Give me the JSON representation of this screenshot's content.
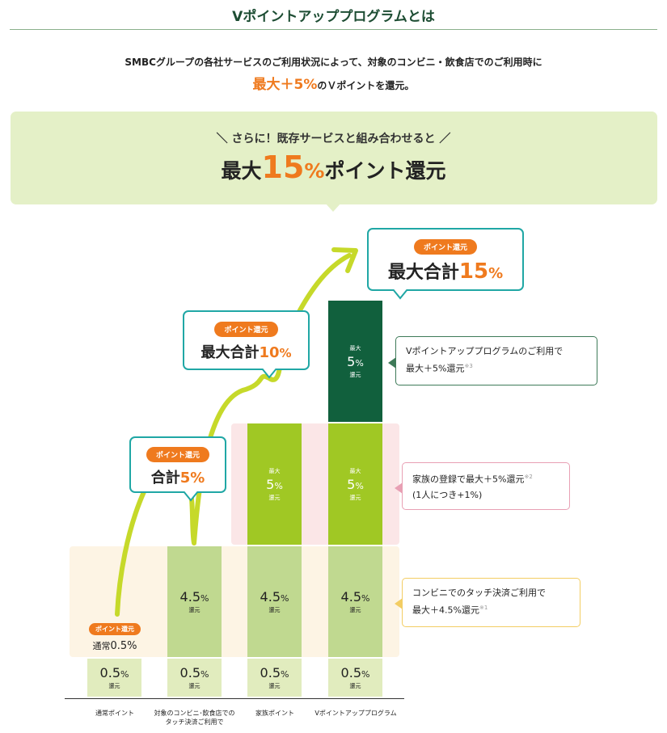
{
  "header": {
    "title": "Vポイントアッププログラムとは",
    "intro_line1": "SMBCグループの各社サービスのご利用状況によって、対象のコンビニ・飲食店でのご利用時に",
    "intro_highlight": "最大＋5%",
    "intro_line2_rest": "のＶポイントを還元。"
  },
  "banner": {
    "subtitle": "＼ さらに！既存サービスと組み合わせると ／",
    "max_prefix": "最大",
    "max_value": "15",
    "max_pct": "%",
    "max_suffix": "ポイント還元"
  },
  "callouts": {
    "pill": "ポイント還元",
    "c5_prefix": "合計",
    "c5_value": "5%",
    "c10_prefix": "最大合計",
    "c10_value": "10",
    "c10_pct": "%",
    "c15_prefix": "最大合計",
    "c15_value": "15",
    "c15_pct": "%"
  },
  "baseline": {
    "pill": "ポイント還元",
    "label": "通常",
    "value": "0.5%"
  },
  "bars": {
    "unit_label": "還元",
    "max_label": "最大",
    "col1": {
      "value": "0.5",
      "pct": "%"
    },
    "col2_base": {
      "value": "0.5",
      "pct": "%"
    },
    "col2_touch": {
      "value": "4.5",
      "pct": "%"
    },
    "col3_base": {
      "value": "0.5",
      "pct": "%"
    },
    "col3_touch": {
      "value": "4.5",
      "pct": "%"
    },
    "col3_family": {
      "value": "5",
      "pct": "%"
    },
    "col4_base": {
      "value": "0.5",
      "pct": "%"
    },
    "col4_touch": {
      "value": "4.5",
      "pct": "%"
    },
    "col4_family": {
      "value": "5",
      "pct": "%"
    },
    "col4_program": {
      "value": "5",
      "pct": "%"
    }
  },
  "x_labels": {
    "col1": "通常ポイント",
    "col2_line1": "対象のコンビニ･飲食店での",
    "col2_line2": "タッチ決済ご利用で",
    "col3": "家族ポイント",
    "col4": "Vポイントアッププログラム"
  },
  "notes": {
    "program_line1": "Vポイントアッププログラムのご利用で",
    "program_line2": "最大＋5%還元",
    "program_mark": "※3",
    "family_line1": "家族の登録で最大＋5%還元",
    "family_mark": "※2",
    "family_line2": "(1人につき+1%)",
    "touch_line1": "コンビニでのタッチ決済ご利用で",
    "touch_line2": "最大＋4.5%還元",
    "touch_mark": "※1"
  },
  "colors": {
    "accent_orange": "#ef7a1e",
    "teal": "#20a7a5",
    "dark_green": "#11603d",
    "lime": "#a0c824",
    "arrow": "#c6d92a"
  }
}
